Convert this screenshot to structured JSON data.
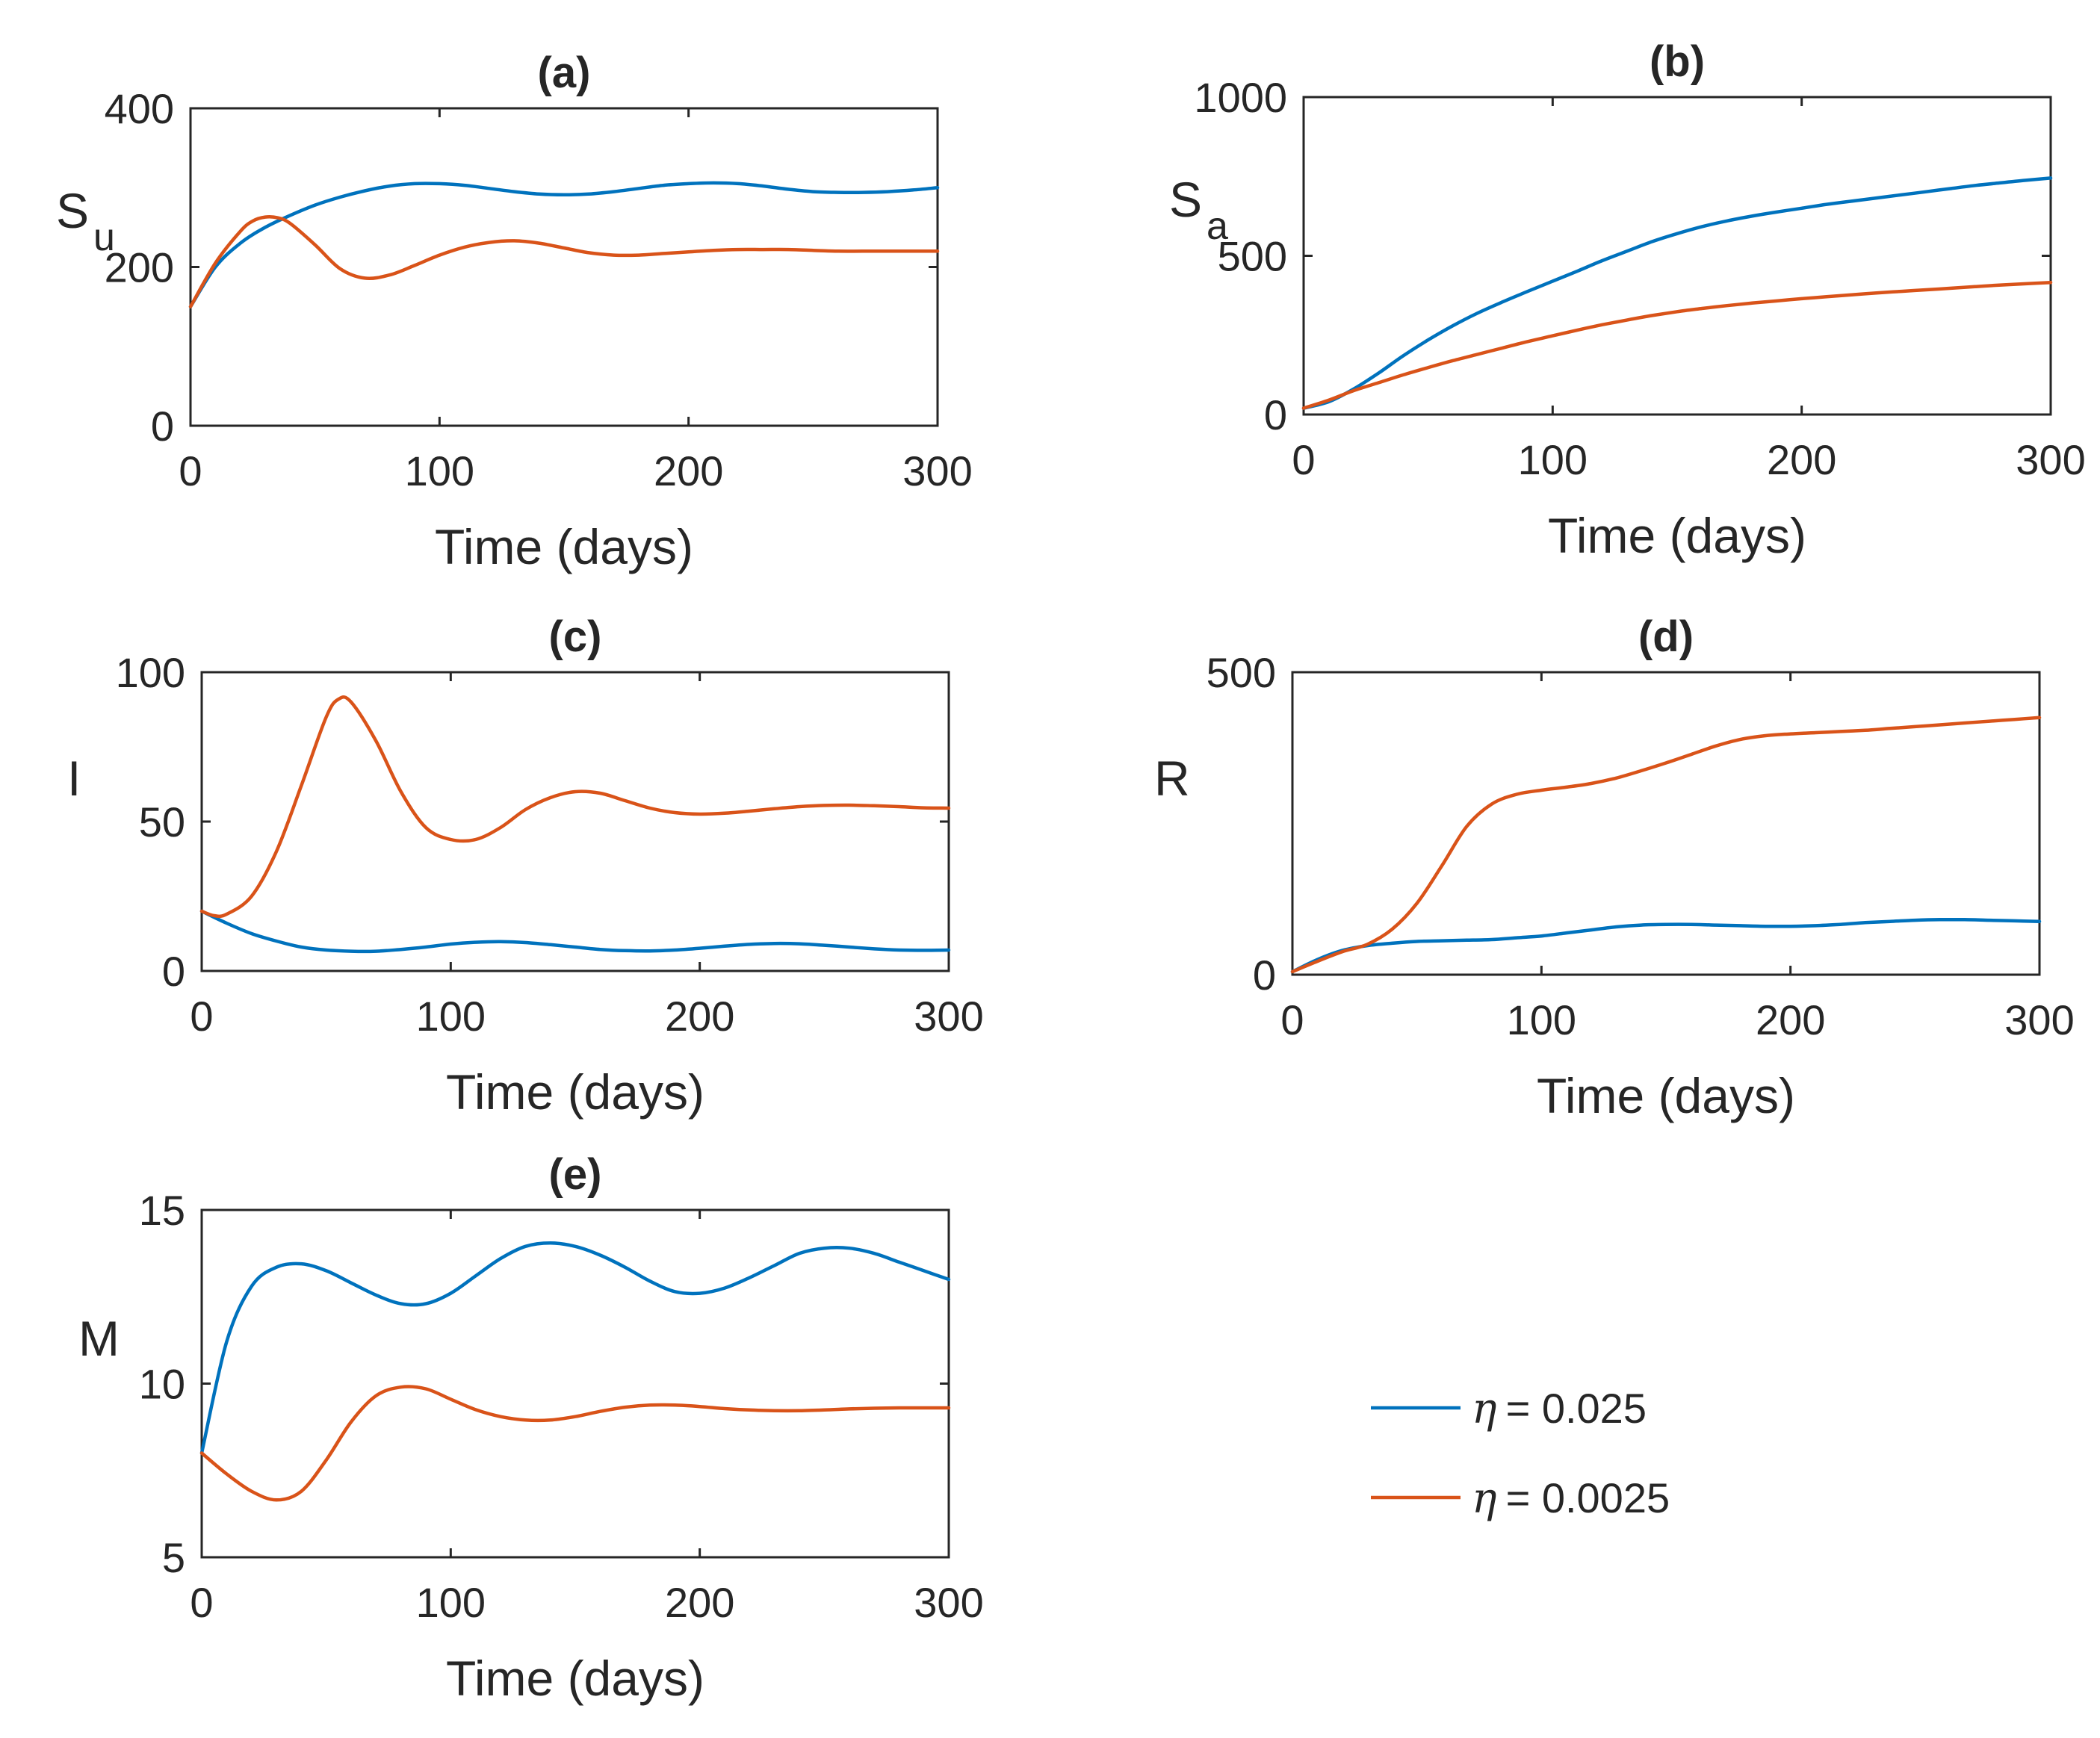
{
  "colors": {
    "series1": "#0072BD",
    "series2": "#D95319",
    "axis": "#262626"
  },
  "legend": {
    "entries": [
      {
        "symbol": "η",
        "label": "= 0.025",
        "series": 0
      },
      {
        "symbol": "η",
        "label": "= 0.0025",
        "series": 1
      }
    ]
  },
  "chart_data": [
    {
      "type": "line",
      "title": "(a)",
      "ylabel_main": "S",
      "ylabel_sub": "u",
      "xlabel": "Time (days)",
      "xlim": [
        0,
        300
      ],
      "ylim": [
        0,
        400
      ],
      "xticks": [
        0,
        100,
        200,
        300
      ],
      "yticks": [
        0,
        200,
        400
      ],
      "series": [
        {
          "x": [
            0,
            10,
            20,
            30,
            40,
            50,
            60,
            70,
            80,
            90,
            100,
            110,
            120,
            130,
            140,
            150,
            160,
            170,
            180,
            190,
            200,
            210,
            220,
            230,
            240,
            250,
            260,
            270,
            280,
            290,
            300
          ],
          "values": [
            150,
            200,
            230,
            250,
            265,
            278,
            288,
            296,
            302,
            305,
            305,
            303,
            299,
            295,
            292,
            291,
            292,
            295,
            299,
            303,
            305,
            306,
            305,
            302,
            298,
            295,
            294,
            294,
            295,
            297,
            300
          ]
        },
        {
          "x": [
            0,
            10,
            20,
            25,
            30,
            35,
            40,
            50,
            60,
            70,
            80,
            90,
            100,
            110,
            120,
            130,
            140,
            150,
            160,
            170,
            180,
            190,
            200,
            210,
            220,
            230,
            240,
            250,
            260,
            270,
            280,
            290,
            300
          ],
          "values": [
            150,
            205,
            245,
            258,
            263,
            262,
            255,
            228,
            198,
            186,
            190,
            202,
            215,
            225,
            231,
            233,
            230,
            224,
            218,
            215,
            215,
            217,
            219,
            221,
            222,
            222,
            222,
            221,
            220,
            220,
            220,
            220,
            220
          ]
        }
      ]
    },
    {
      "type": "line",
      "title": "(b)",
      "ylabel_main": "S",
      "ylabel_sub": "a",
      "xlabel": "Time (days)",
      "xlim": [
        0,
        300
      ],
      "ylim": [
        0,
        1000
      ],
      "xticks": [
        0,
        100,
        200,
        300
      ],
      "yticks": [
        0,
        500,
        1000
      ],
      "series": [
        {
          "x": [
            0,
            10,
            20,
            30,
            40,
            50,
            60,
            70,
            80,
            90,
            100,
            110,
            120,
            130,
            140,
            150,
            160,
            170,
            180,
            190,
            200,
            210,
            220,
            230,
            240,
            250,
            260,
            270,
            280,
            290,
            300
          ],
          "values": [
            20,
            40,
            80,
            130,
            185,
            235,
            280,
            320,
            355,
            388,
            420,
            452,
            485,
            515,
            545,
            570,
            592,
            610,
            625,
            638,
            650,
            662,
            672,
            682,
            692,
            702,
            712,
            722,
            730,
            738,
            745
          ]
        },
        {
          "x": [
            0,
            10,
            20,
            30,
            40,
            50,
            60,
            70,
            80,
            90,
            100,
            110,
            120,
            130,
            140,
            150,
            160,
            170,
            180,
            190,
            200,
            210,
            220,
            230,
            240,
            250,
            260,
            270,
            280,
            290,
            300
          ],
          "values": [
            20,
            45,
            75,
            100,
            125,
            148,
            170,
            190,
            210,
            230,
            248,
            266,
            283,
            298,
            312,
            324,
            334,
            343,
            351,
            358,
            365,
            371,
            377,
            383,
            388,
            393,
            398,
            403,
            408,
            412,
            416
          ]
        }
      ]
    },
    {
      "type": "line",
      "title": "(c)",
      "ylabel_main": "I",
      "ylabel_sub": "",
      "xlabel": "Time (days)",
      "xlim": [
        0,
        300
      ],
      "ylim": [
        0,
        100
      ],
      "xticks": [
        0,
        100,
        200,
        300
      ],
      "yticks": [
        0,
        50,
        100
      ],
      "series": [
        {
          "x": [
            0,
            10,
            20,
            30,
            40,
            50,
            60,
            70,
            80,
            90,
            100,
            110,
            120,
            130,
            140,
            150,
            160,
            170,
            180,
            190,
            200,
            210,
            220,
            230,
            240,
            250,
            260,
            270,
            280,
            290,
            300
          ],
          "values": [
            20,
            16,
            12.5,
            10,
            8,
            7,
            6.6,
            6.6,
            7.2,
            8,
            9,
            9.6,
            9.8,
            9.5,
            8.8,
            8,
            7.2,
            6.8,
            6.7,
            7,
            7.6,
            8.3,
            8.9,
            9.2,
            9.1,
            8.6,
            8,
            7.4,
            7,
            6.9,
            7
          ]
        },
        {
          "x": [
            0,
            5,
            10,
            20,
            30,
            40,
            50,
            55,
            60,
            70,
            80,
            90,
            100,
            110,
            120,
            130,
            140,
            150,
            160,
            170,
            180,
            190,
            200,
            210,
            220,
            230,
            240,
            250,
            260,
            270,
            280,
            290,
            300
          ],
          "values": [
            20,
            18.5,
            19,
            25,
            40,
            62,
            85,
            91,
            90,
            77,
            60,
            48,
            44,
            44,
            48,
            54,
            58,
            60,
            59.5,
            57,
            54.5,
            53,
            52.5,
            52.8,
            53.5,
            54.3,
            55,
            55.4,
            55.5,
            55.3,
            55,
            54.6,
            54.5
          ]
        }
      ]
    },
    {
      "type": "line",
      "title": "(d)",
      "ylabel_main": "R",
      "ylabel_sub": "",
      "xlabel": "Time (days)",
      "xlim": [
        0,
        300
      ],
      "ylim": [
        0,
        500
      ],
      "xticks": [
        0,
        100,
        200,
        300
      ],
      "yticks": [
        0,
        500
      ],
      "series": [
        {
          "x": [
            0,
            10,
            20,
            30,
            40,
            50,
            60,
            70,
            80,
            90,
            100,
            110,
            120,
            130,
            140,
            150,
            160,
            170,
            180,
            190,
            200,
            210,
            220,
            230,
            240,
            250,
            260,
            270,
            280,
            290,
            300
          ],
          "values": [
            5,
            25,
            40,
            48,
            52,
            55,
            56,
            57,
            58,
            61,
            64,
            69,
            74,
            79,
            82,
            83,
            83,
            82,
            81,
            80,
            80,
            81,
            83,
            86,
            88,
            90,
            91,
            91,
            90,
            89,
            88
          ]
        },
        {
          "x": [
            0,
            10,
            20,
            30,
            40,
            50,
            60,
            70,
            80,
            90,
            100,
            110,
            120,
            130,
            140,
            150,
            160,
            170,
            180,
            190,
            200,
            210,
            220,
            230,
            240,
            250,
            260,
            270,
            280,
            290,
            300
          ],
          "values": [
            5,
            22,
            38,
            50,
            75,
            118,
            180,
            245,
            282,
            298,
            305,
            310,
            316,
            325,
            337,
            350,
            364,
            378,
            389,
            395,
            398,
            400,
            402,
            404,
            407,
            410,
            413,
            416,
            419,
            422,
            425
          ]
        }
      ]
    },
    {
      "type": "line",
      "title": "(e)",
      "ylabel_main": "M",
      "ylabel_sub": "",
      "xlabel": "Time (days)",
      "xlim": [
        0,
        300
      ],
      "ylim": [
        5,
        15
      ],
      "xticks": [
        0,
        100,
        200,
        300
      ],
      "yticks": [
        5,
        10,
        15
      ],
      "series": [
        {
          "x": [
            0,
            10,
            20,
            30,
            40,
            50,
            60,
            70,
            80,
            90,
            100,
            110,
            120,
            130,
            140,
            150,
            160,
            170,
            180,
            190,
            200,
            210,
            220,
            230,
            240,
            250,
            260,
            270,
            280,
            290,
            300
          ],
          "values": [
            8,
            11.2,
            12.8,
            13.35,
            13.45,
            13.25,
            12.9,
            12.55,
            12.3,
            12.3,
            12.6,
            13.1,
            13.6,
            13.95,
            14.05,
            13.95,
            13.7,
            13.35,
            12.95,
            12.65,
            12.6,
            12.75,
            13.05,
            13.4,
            13.75,
            13.9,
            13.9,
            13.75,
            13.5,
            13.25,
            13
          ]
        },
        {
          "x": [
            0,
            10,
            20,
            30,
            40,
            50,
            60,
            70,
            80,
            90,
            100,
            110,
            120,
            130,
            140,
            150,
            160,
            170,
            180,
            190,
            200,
            210,
            220,
            230,
            240,
            250,
            260,
            270,
            280,
            290,
            300
          ],
          "values": [
            8,
            7.4,
            6.9,
            6.65,
            6.9,
            7.8,
            8.9,
            9.65,
            9.9,
            9.85,
            9.55,
            9.25,
            9.05,
            8.95,
            8.95,
            9.05,
            9.2,
            9.32,
            9.38,
            9.38,
            9.34,
            9.28,
            9.24,
            9.22,
            9.22,
            9.24,
            9.27,
            9.29,
            9.3,
            9.3,
            9.3
          ]
        }
      ]
    }
  ]
}
